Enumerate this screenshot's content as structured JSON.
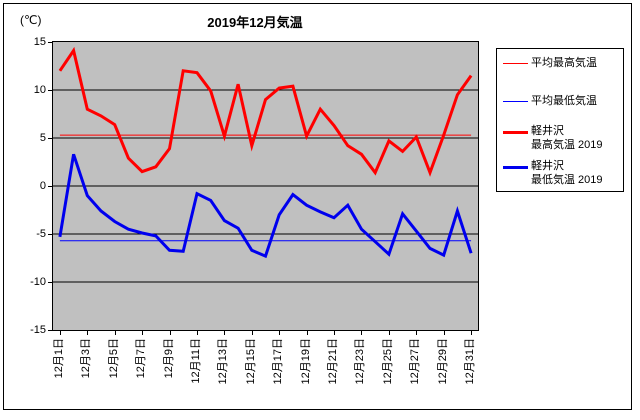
{
  "title": "2019年12月気温",
  "y_axis_unit": "(℃)",
  "colors": {
    "plot_background": "#c0c0c0",
    "grid": "#000000",
    "avg_max_line": "#ff0000",
    "avg_min_line": "#0000ff",
    "max_2019_line": "#ff0000",
    "min_2019_line": "#0000ee"
  },
  "legend": {
    "items": [
      {
        "label": "平均最高気温",
        "label2": "",
        "color": "#ff0000",
        "thickness": 1
      },
      {
        "label": "平均最低気温",
        "label2": "",
        "color": "#0000ff",
        "thickness": 1
      },
      {
        "label": "軽井沢",
        "label2": "最高気温 2019",
        "color": "#ff0000",
        "thickness": 3
      },
      {
        "label": "軽井沢",
        "label2": "最低気温 2019",
        "color": "#0000ee",
        "thickness": 3
      }
    ]
  },
  "chart_data": {
    "type": "line",
    "title": "2019年12月気温",
    "ylabel": "(℃)",
    "ylim": [
      -15,
      15
    ],
    "yticks": [
      15,
      10,
      5,
      0,
      -5,
      -10,
      -15
    ],
    "grid": "horizontal",
    "legend_position": "right",
    "x_tick_labels": [
      "12月1日",
      "12月3日",
      "12月5日",
      "12月7日",
      "12月9日",
      "12月11日",
      "12月13日",
      "12月15日",
      "12月17日",
      "12月19日",
      "12月21日",
      "12月23日",
      "12月25日",
      "12月27日",
      "12月29日",
      "12月31日"
    ],
    "x_label_interval": 2,
    "n_points": 31,
    "series": [
      {
        "name": "平均最高気温",
        "constant": true,
        "value": 5.3,
        "color": "#ff0000",
        "width": 1
      },
      {
        "name": "平均最低気温",
        "constant": true,
        "value": -5.7,
        "color": "#0000ff",
        "width": 1
      },
      {
        "name": "軽井沢 最高気温 2019",
        "color": "#ff0000",
        "width": 3,
        "values": [
          12.0,
          14.1,
          8.0,
          7.3,
          6.4,
          2.9,
          1.5,
          2.0,
          3.9,
          12.0,
          11.8,
          9.9,
          5.2,
          10.6,
          4.2,
          9.0,
          10.2,
          10.4,
          5.2,
          8.0,
          6.3,
          4.2,
          3.3,
          1.4,
          4.7,
          3.6,
          5.1,
          1.4,
          5.3,
          9.5,
          11.5
        ]
      },
      {
        "name": "軽井沢 最低気温 2019",
        "color": "#0000ee",
        "width": 3,
        "values": [
          -5.3,
          3.3,
          -1.0,
          -2.6,
          -3.7,
          -4.5,
          -4.9,
          -5.2,
          -6.7,
          -6.8,
          -0.8,
          -1.5,
          -3.6,
          -4.4,
          -6.7,
          -7.3,
          -3.0,
          -0.9,
          -2.0,
          -2.7,
          -3.3,
          -2.0,
          -4.5,
          -5.8,
          -7.1,
          -2.9,
          -4.7,
          -6.5,
          -7.2,
          -2.6,
          -7.0
        ]
      }
    ]
  }
}
